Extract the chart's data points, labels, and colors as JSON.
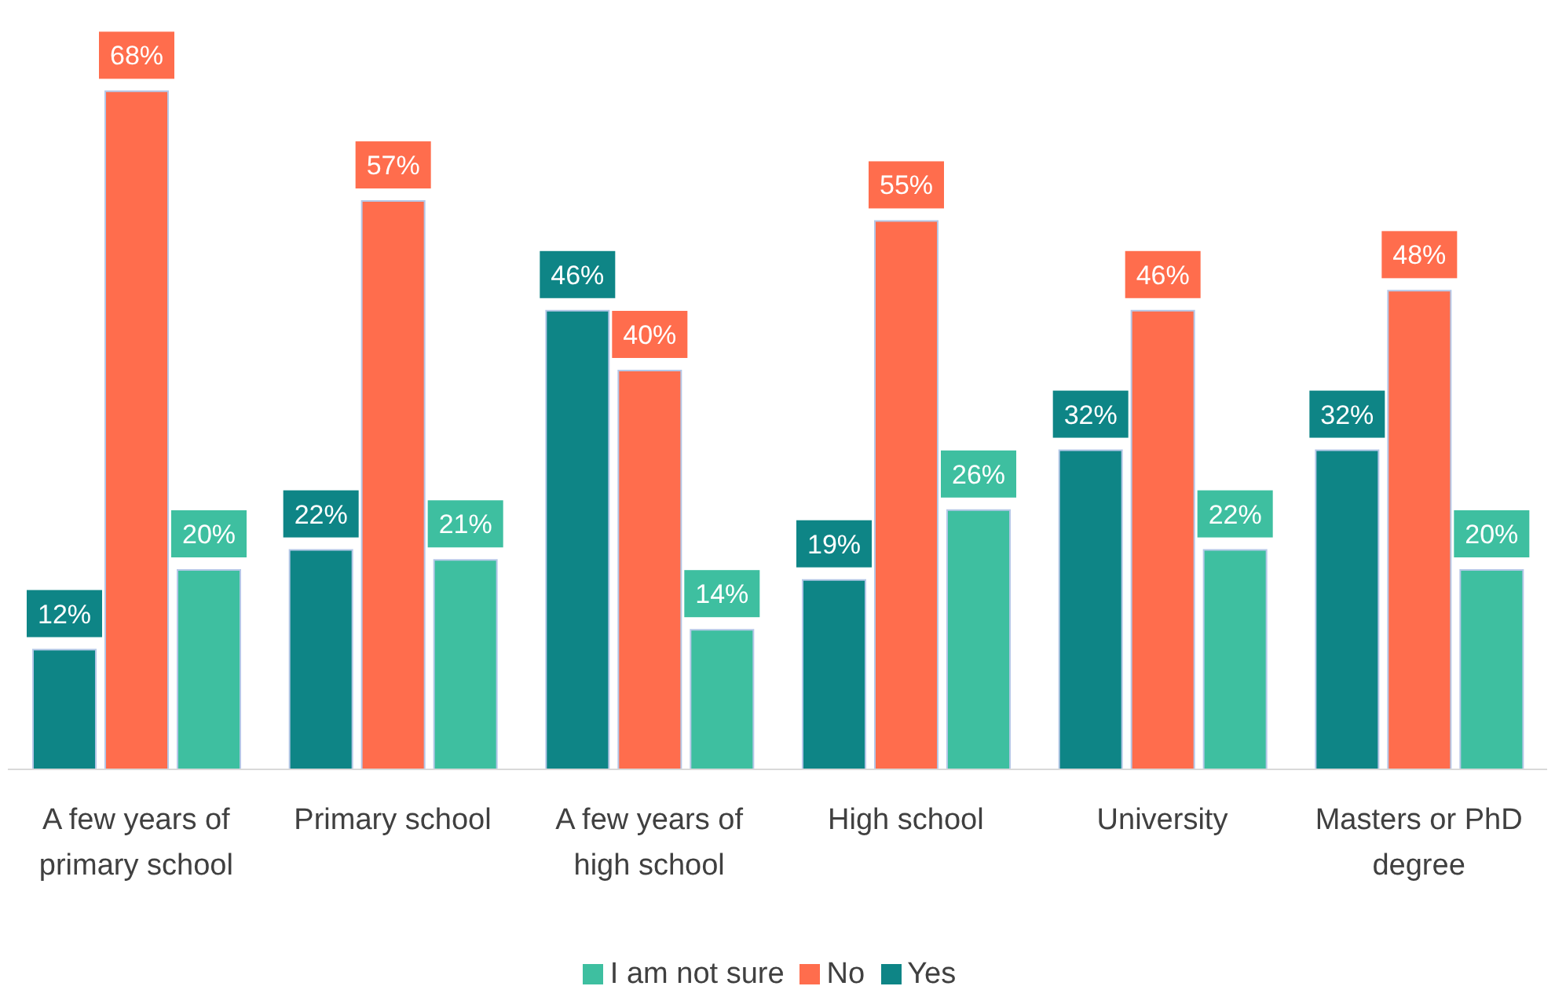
{
  "chart_data": {
    "type": "bar",
    "categories": [
      "A few years of primary school",
      "Primary school",
      "A few years of high school",
      "High school",
      "University",
      "Masters or PhD degree"
    ],
    "series": [
      {
        "name": "Yes",
        "color": "#0e8586",
        "values": [
          12,
          22,
          46,
          19,
          32,
          32
        ],
        "value_labels": [
          "12%",
          "22%",
          "46%",
          "19%",
          "32%",
          "32%"
        ]
      },
      {
        "name": "No",
        "color": "#ff6d4d",
        "values": [
          68,
          57,
          40,
          55,
          46,
          48
        ],
        "value_labels": [
          "68%",
          "57%",
          "40%",
          "55%",
          "46%",
          "48%"
        ]
      },
      {
        "name": "I am not sure",
        "color": "#3ebfa0",
        "values": [
          20,
          21,
          14,
          26,
          22,
          20
        ],
        "value_labels": [
          "20%",
          "21%",
          "14%",
          "26%",
          "22%",
          "20%"
        ]
      }
    ],
    "legend": "bottom",
    "grid": false
  }
}
